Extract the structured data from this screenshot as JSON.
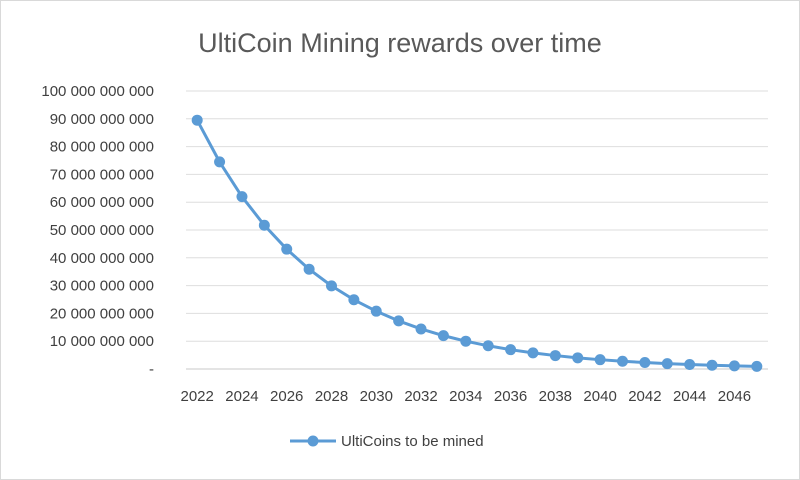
{
  "chart_data": {
    "type": "line",
    "title": "UltiCoin Mining rewards over time",
    "xlabel": "",
    "ylabel": "",
    "ylim": [
      0,
      100000000000
    ],
    "grid": true,
    "legend": "bottom",
    "y_ticks": [
      "-",
      "10 000 000 000",
      "20 000 000 000",
      "30 000 000 000",
      "40 000 000 000",
      "50 000 000 000",
      "60 000 000 000",
      "70 000 000 000",
      "80 000 000 000",
      "90 000 000 000",
      "100 000 000 000"
    ],
    "x_ticks": [
      "2022",
      "2024",
      "2026",
      "2028",
      "2030",
      "2032",
      "2034",
      "2036",
      "2038",
      "2040",
      "2042",
      "2044",
      "2046"
    ],
    "x": [
      2022,
      2023,
      2024,
      2025,
      2026,
      2027,
      2028,
      2029,
      2030,
      2031,
      2032,
      2033,
      2034,
      2035,
      2036,
      2037,
      2038,
      2039,
      2040,
      2041,
      2042,
      2043,
      2044,
      2045,
      2046,
      2047
    ],
    "series": [
      {
        "name": "UltiCoins to be mined",
        "color": "#5b9bd5",
        "values": [
          89500000000,
          74500000000,
          62000000000,
          51700000000,
          43100000000,
          35900000000,
          29900000000,
          24900000000,
          20800000000,
          17300000000,
          14400000000,
          12000000000,
          10000000000,
          8350000000,
          6950000000,
          5800000000,
          4830000000,
          4020000000,
          3350000000,
          2800000000,
          2330000000,
          1940000000,
          1620000000,
          1350000000,
          1120000000,
          930000000
        ]
      }
    ]
  }
}
